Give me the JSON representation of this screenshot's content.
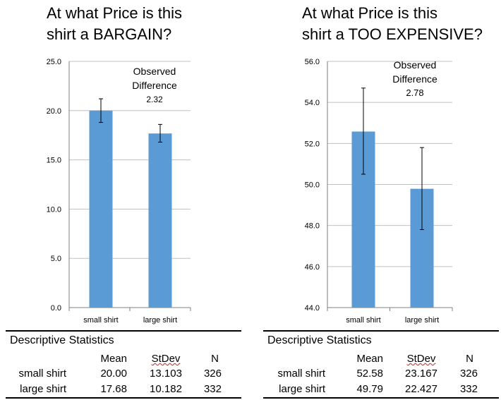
{
  "chart_data": [
    {
      "type": "bar",
      "title": "At what Price is this shirt a BARGAIN?",
      "categories": [
        "small shirt",
        "large shirt"
      ],
      "values": [
        20.0,
        17.68
      ],
      "error_bars": [
        [
          18.8,
          21.2
        ],
        [
          16.8,
          18.6
        ]
      ],
      "ylim": [
        0,
        25
      ],
      "yticks": [
        "0.0",
        "5.0",
        "10.0",
        "15.0",
        "20.0",
        "25.0"
      ],
      "grid": true,
      "bar_color": "#5b9bd5",
      "annotation": [
        "Observed",
        "Difference",
        "2.32"
      ]
    },
    {
      "type": "bar",
      "title": "At what Price is this shirt a TOO EXPENSIVE?",
      "categories": [
        "small shirt",
        "large shirt"
      ],
      "values": [
        52.58,
        49.79
      ],
      "error_bars": [
        [
          50.5,
          54.7
        ],
        [
          47.8,
          51.8
        ]
      ],
      "ylim": [
        44,
        56
      ],
      "yticks": [
        "44.0",
        "46.0",
        "48.0",
        "50.0",
        "52.0",
        "54.0",
        "56.0"
      ],
      "grid": true,
      "bar_color": "#5b9bd5",
      "annotation": [
        "Observed",
        "Difference",
        "2.78"
      ]
    }
  ],
  "panels": [
    {
      "title_lines": [
        "At what Price is this",
        "shirt a BARGAIN?"
      ],
      "stats": {
        "title": "Descriptive Statistics",
        "headers": [
          "Mean",
          "StDev",
          "N"
        ],
        "rows": [
          {
            "label": "small shirt",
            "mean": "20.00",
            "stdev": "13.103",
            "n": "326"
          },
          {
            "label": "large shirt",
            "mean": "17.68",
            "stdev": "10.182",
            "n": "332"
          }
        ]
      }
    },
    {
      "title_lines": [
        "At what Price is this",
        "shirt a TOO EXPENSIVE?"
      ],
      "stats": {
        "title": "Descriptive Statistics",
        "headers": [
          "Mean",
          "StDev",
          "N"
        ],
        "rows": [
          {
            "label": "small shirt",
            "mean": "52.58",
            "stdev": "23.167",
            "n": "326"
          },
          {
            "label": "large shirt",
            "mean": "49.79",
            "stdev": "22.427",
            "n": "332"
          }
        ]
      }
    }
  ]
}
